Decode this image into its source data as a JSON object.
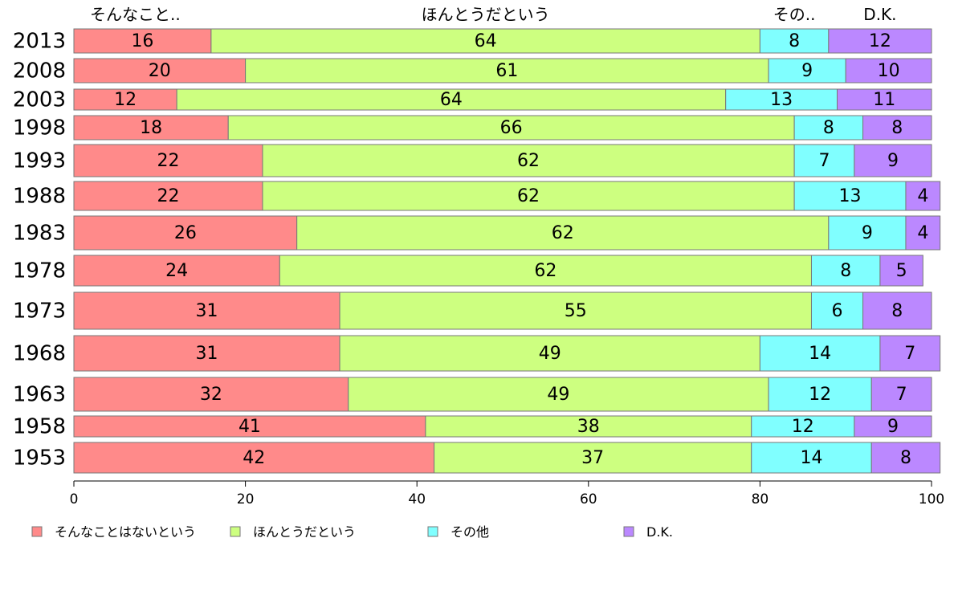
{
  "chart_data": {
    "type": "bar",
    "orientation": "horizontal",
    "stacked": true,
    "categories": [
      "2013",
      "2008",
      "2003",
      "1998",
      "1993",
      "1988",
      "1983",
      "1978",
      "1973",
      "1968",
      "1963",
      "1958",
      "1953"
    ],
    "series": [
      {
        "name": "そんなことはないという",
        "header": "そんなこと..",
        "color": "#ff8a8a",
        "values": [
          16,
          20,
          12,
          18,
          22,
          22,
          26,
          24,
          31,
          31,
          32,
          41,
          42
        ]
      },
      {
        "name": "ほんとうだという",
        "header": "ほんとうだという",
        "color": "#cdff80",
        "values": [
          64,
          61,
          64,
          66,
          62,
          62,
          62,
          62,
          55,
          49,
          49,
          38,
          37
        ]
      },
      {
        "name": "その他",
        "header": "その..",
        "color": "#80ffff",
        "values": [
          8,
          9,
          13,
          8,
          7,
          13,
          9,
          8,
          6,
          14,
          12,
          12,
          14
        ]
      },
      {
        "name": "D.K.",
        "header": "D.K.",
        "color": "#bb88ff",
        "values": [
          12,
          10,
          11,
          8,
          9,
          4,
          4,
          5,
          8,
          7,
          7,
          9,
          8
        ]
      }
    ],
    "xlim": [
      0,
      100
    ],
    "xticks": [
      0,
      20,
      40,
      60,
      80,
      100
    ],
    "grid": false,
    "legend": "bottom"
  }
}
